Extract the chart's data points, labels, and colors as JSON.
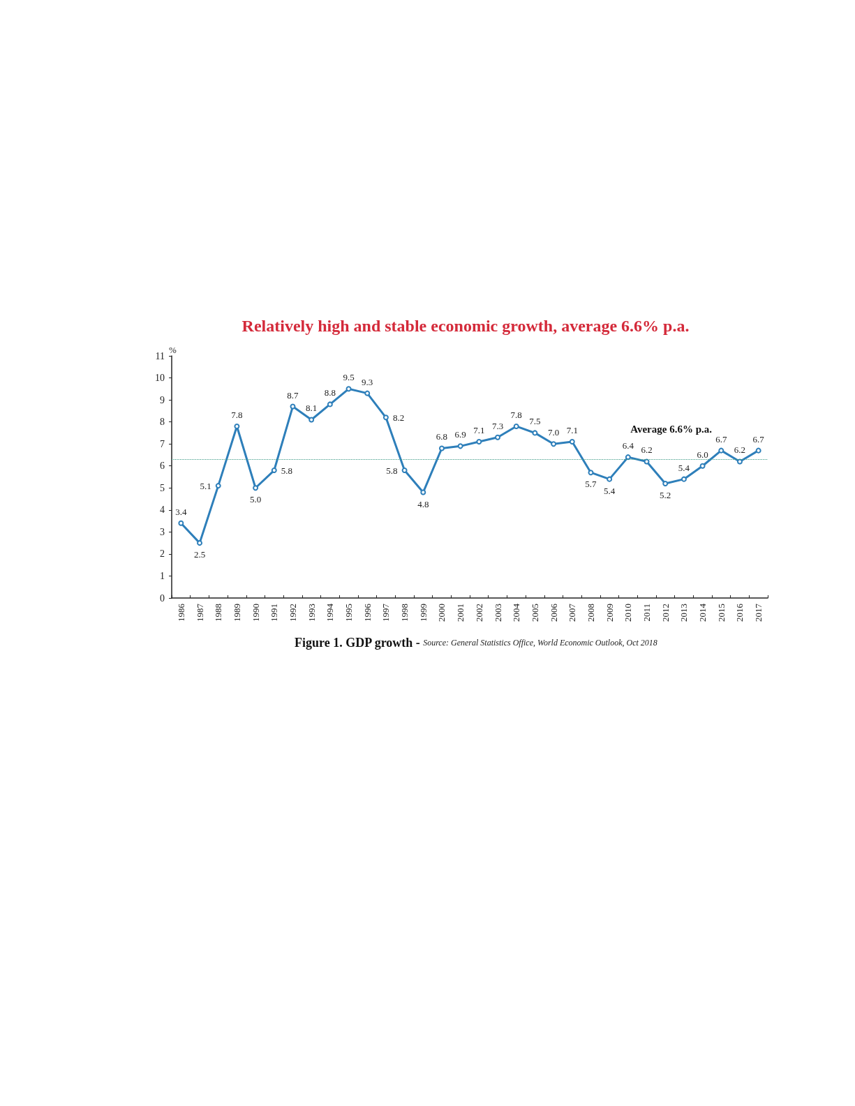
{
  "chart_data": {
    "type": "line",
    "title": "Relatively high and stable economic growth, average 6.6% p.a.",
    "ylabel": "%",
    "categories": [
      "1986",
      "1987",
      "1988",
      "1989",
      "1990",
      "1991",
      "1992",
      "1993",
      "1994",
      "1995",
      "1996",
      "1997",
      "1998",
      "1999",
      "2000",
      "2001",
      "2002",
      "2003",
      "2004",
      "2005",
      "2006",
      "2007",
      "2008",
      "2009",
      "2010",
      "2011",
      "2012",
      "2013",
      "2014",
      "2015",
      "2016",
      "2017"
    ],
    "series": [
      {
        "color": "#2e7fba",
        "values": [
          3.4,
          2.5,
          5.1,
          7.8,
          5.0,
          5.8,
          8.7,
          8.1,
          8.8,
          9.5,
          9.3,
          8.2,
          5.8,
          4.8,
          6.8,
          6.9,
          7.1,
          7.3,
          7.8,
          7.5,
          7.0,
          7.1,
          5.7,
          5.4,
          6.4,
          6.2,
          5.2,
          5.4,
          6.0,
          6.7,
          6.2,
          6.7
        ],
        "value_labels": [
          "3.4",
          "2.5",
          "5.1",
          "7.8",
          "5.0",
          "5.8",
          "8.7",
          "8.1",
          "8.8",
          "9.5",
          "9.3",
          "8.2",
          "5.8",
          "4.8",
          "6.8",
          "6.9",
          "7.1",
          "7.3",
          "7.8",
          "7.5",
          "7.0",
          "7.1",
          "5.7",
          "5.4",
          "6.4",
          "6.2",
          "5.2",
          "5.4",
          "6.0",
          "6.7",
          "6.2",
          "6.7"
        ]
      }
    ],
    "ylim": [
      0,
      11
    ],
    "yticks": [
      0,
      1,
      2,
      3,
      4,
      5,
      6,
      7,
      8,
      9,
      10,
      11
    ],
    "ref_lines": [
      {
        "axis": "y",
        "value": 6.3,
        "label": "Average 6.6% p.a.",
        "color": "#3c9a86",
        "line_style": "dotted"
      }
    ],
    "annotations": [
      "Figure 1. GDP growth -",
      "Source: General Statistics Office, World Economic Outlook, Oct 2018"
    ],
    "marker": "circle"
  }
}
